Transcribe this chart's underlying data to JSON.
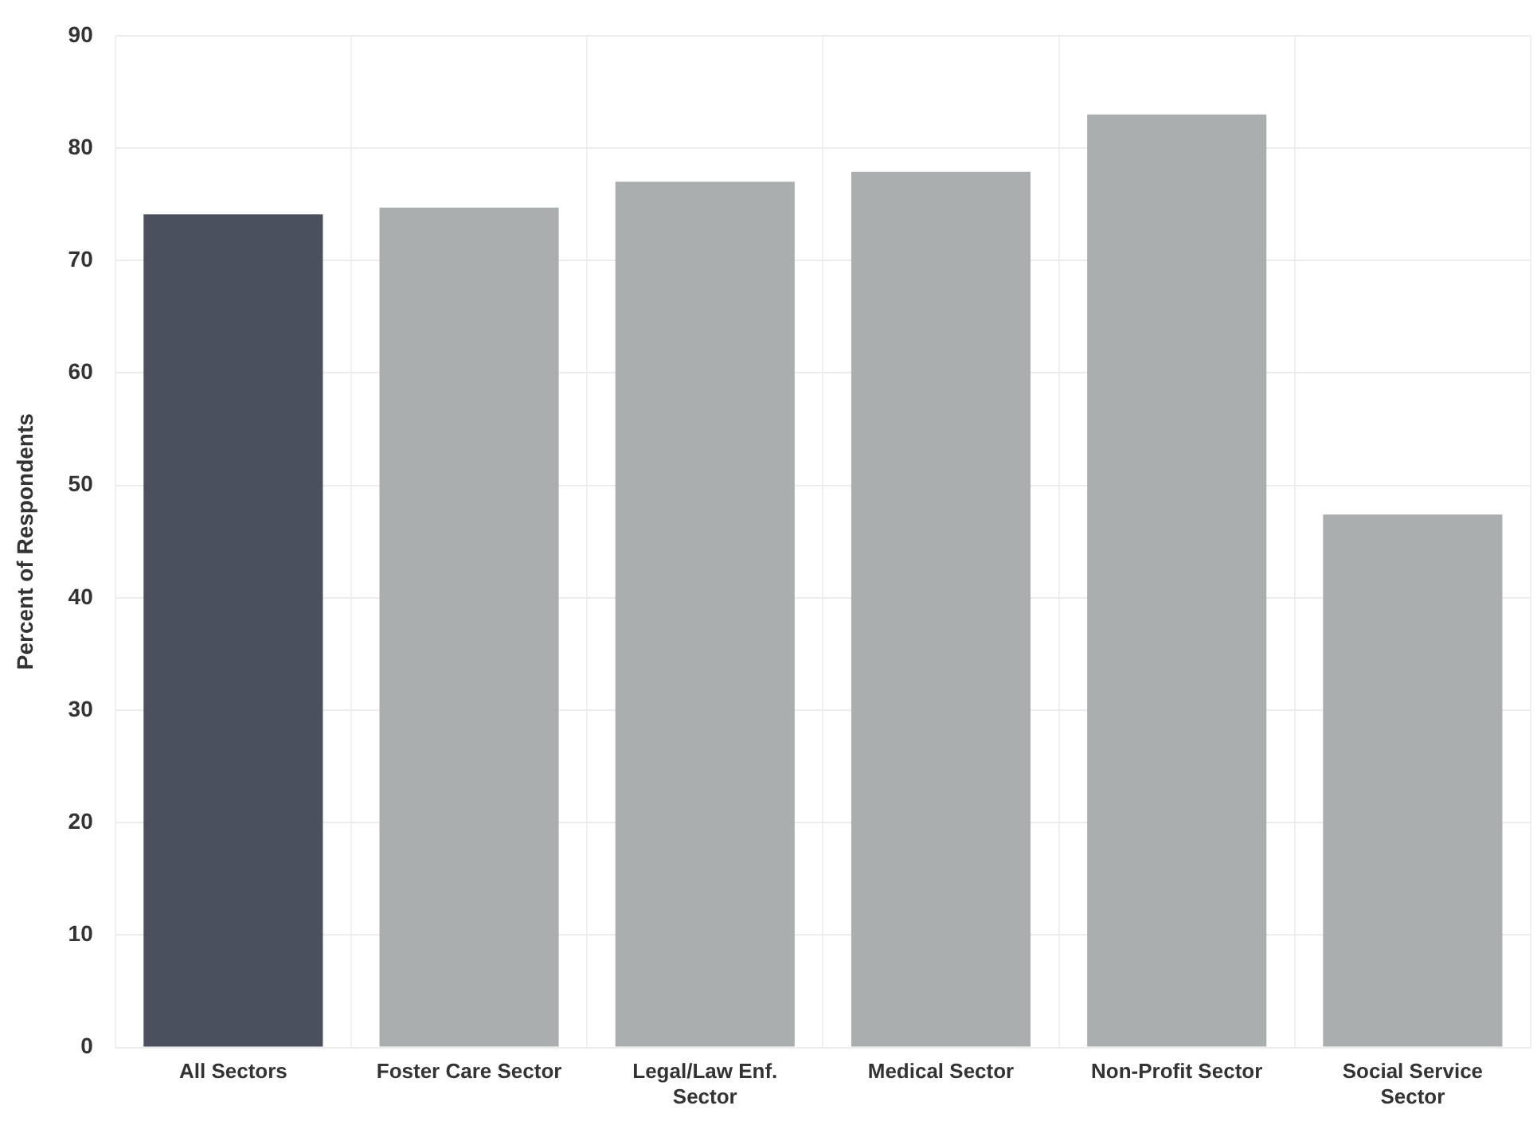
{
  "chart_data": {
    "type": "bar",
    "ylabel": "Percent of Respondents",
    "categories": [
      "All Sectors",
      "Foster Care Sector",
      "Legal/Law Enf. Sector",
      "Medical Sector",
      "Non-Profit Sector",
      "Social Service Sector"
    ],
    "values": [
      74.1,
      74.7,
      77.0,
      77.9,
      83.0,
      47.4
    ],
    "colors": [
      "#4a505c",
      "#abaeae",
      "#abaeae",
      "#abaeae",
      "#abaeae",
      "#abaeae"
    ],
    "ylim": [
      0,
      90
    ],
    "yticks": [
      0,
      10,
      20,
      30,
      40,
      50,
      60,
      70,
      80,
      90
    ],
    "grid": "y"
  }
}
